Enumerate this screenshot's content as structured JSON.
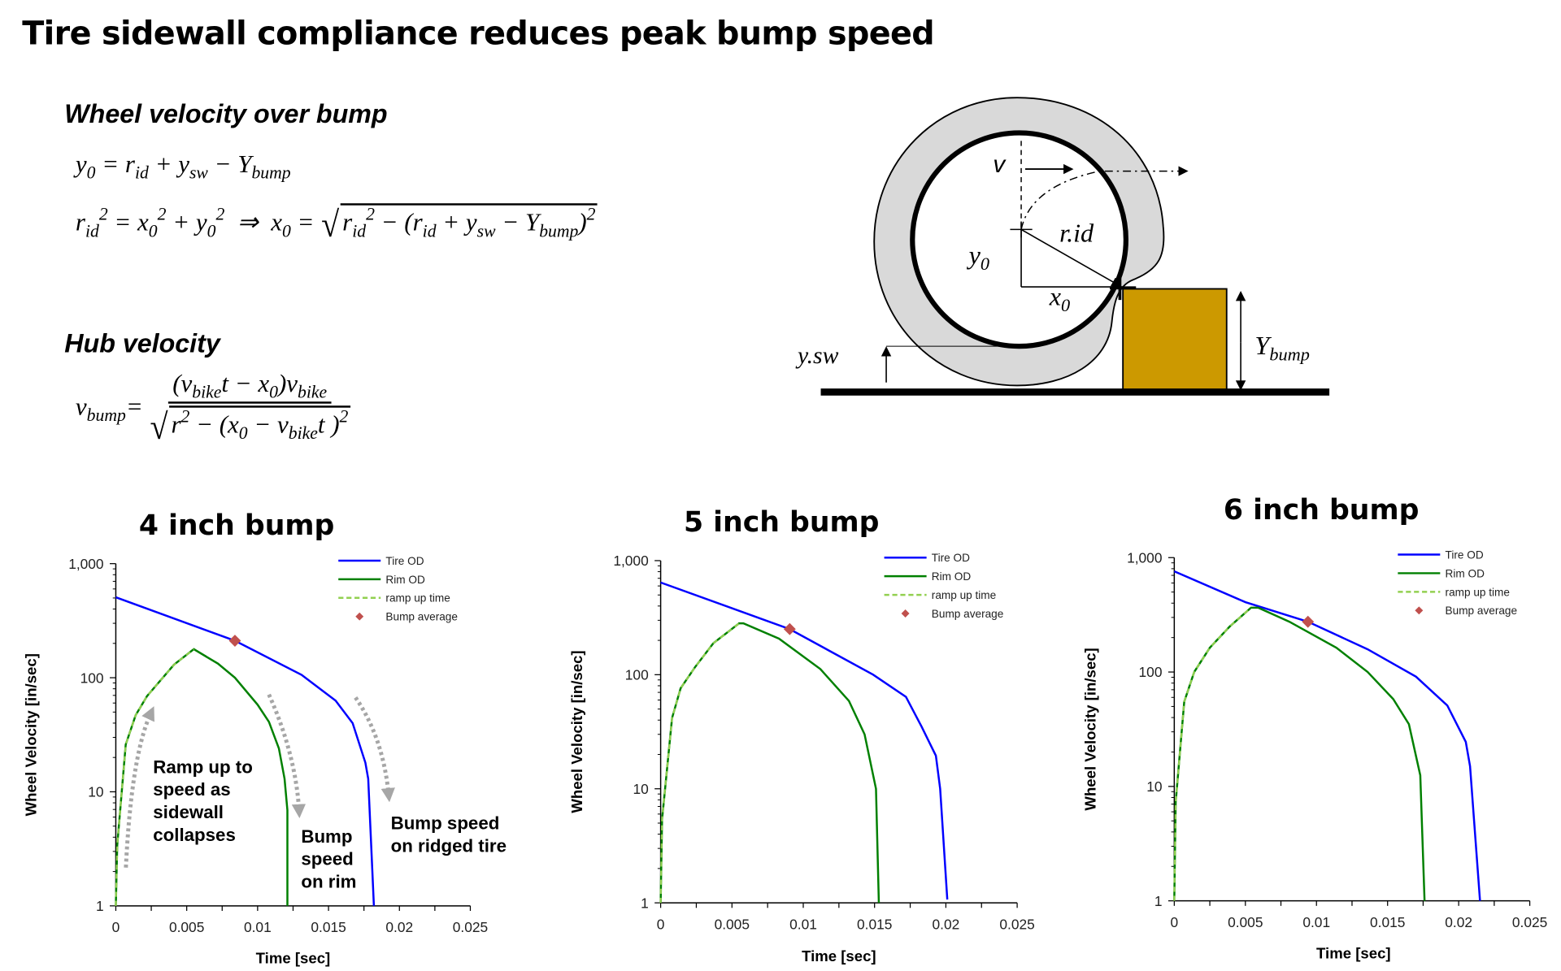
{
  "title": "Tire sidewall compliance reduces peak bump speed",
  "equations_panel": {
    "section1": "Wheel velocity over bump",
    "eq_y0": "y_{0} = r_{id} + y_{sw} − Y_{bump}",
    "eq_x0_lhs": "r_{id}^{2} = x_{0}^{2} + y_{0}^{2}  ⇒  x_{0} = ",
    "eq_x0_radicand": "r_{id}^{2} − (r_{id} + y_{sw} − Y_{bump})^{2}",
    "section2": "Hub velocity",
    "eq_vbump_lhs": "v_{bump}=",
    "eq_vbump_num": "(v_{bike}t − x_{0})v_{bike}",
    "eq_vbump_den": "r^{2} − (x_{0} − v_{bike}t )^{2}"
  },
  "diagram": {
    "v_label": "v",
    "rid_label": "r.id",
    "y0_label": {
      "main": "y",
      "sub": "0"
    },
    "x0_label": {
      "main": "x",
      "sub": "0"
    },
    "ysw_label": "y.sw",
    "ybump_label": {
      "main": "Y",
      "sub": "bump"
    },
    "colors": {
      "tire": "#d9d9d9",
      "bump": "#cc9900",
      "ground": "#000000"
    }
  },
  "chart_data": [
    {
      "type": "line",
      "title": "4 inch bump",
      "xlabel": "Time [sec]",
      "ylabel": "Wheel Velocity [in/sec]",
      "xlim": [
        0,
        0.025
      ],
      "ylim": [
        1,
        1000
      ],
      "yscale": "log",
      "xticks": [
        "0",
        "0.005",
        "0.01",
        "0.015",
        "0.02",
        "0.025"
      ],
      "yticks": [
        "1",
        "10",
        "100",
        "1,000"
      ],
      "grid": false,
      "legend_position": "top-right",
      "series": [
        {
          "name": "Tire OD",
          "color": "#0000ff",
          "style": "solid",
          "x": [
            0,
            0.0084,
            0.0131,
            0.0155,
            0.0167,
            0.0176,
            0.0178,
            0.0182
          ],
          "y": [
            507,
            211,
            106,
            63,
            40,
            18,
            13,
            1
          ]
        },
        {
          "name": "Rim OD",
          "color": "#008000",
          "style": "solid",
          "x": [
            0,
            0.0001,
            0.0007,
            0.0014,
            0.0022,
            0.0041,
            0.0055,
            0.0072,
            0.0084,
            0.01,
            0.0108,
            0.0115,
            0.0119,
            0.0121,
            0.0121
          ],
          "y": [
            1,
            3.4,
            26,
            47,
            69,
            130,
            178,
            133,
            100,
            58,
            41,
            24,
            13,
            6.9,
            1
          ]
        },
        {
          "name": "ramp up time",
          "color": "#92d050",
          "style": "dashed",
          "x": [
            0,
            0.0001,
            0.0007,
            0.0014,
            0.0022,
            0.0041,
            0.0055
          ],
          "y": [
            1,
            3.4,
            26,
            47,
            69,
            130,
            178
          ]
        },
        {
          "name": "Bump average",
          "color": "#c0504d",
          "style": "marker",
          "x": [
            0.0084
          ],
          "y": [
            211
          ]
        }
      ],
      "annotations": [
        {
          "lines": [
            "Ramp up to",
            "speed as",
            "sidewall",
            "collapses"
          ]
        },
        {
          "lines": [
            "Bump",
            "speed",
            "on rim"
          ]
        },
        {
          "lines": [
            "Bump speed",
            "on ridged tire"
          ]
        }
      ]
    },
    {
      "type": "line",
      "title": "5 inch bump",
      "xlabel": "Time [sec]",
      "ylabel": "Wheel Velocity [in/sec]",
      "xlim": [
        0,
        0.025
      ],
      "ylim": [
        1,
        1000
      ],
      "yscale": "log",
      "xticks": [
        "0",
        "0.005",
        "0.01",
        "0.015",
        "0.02",
        "0.025"
      ],
      "yticks": [
        "1",
        "10",
        "100",
        "1,000"
      ],
      "grid": false,
      "legend_position": "top-right",
      "series": [
        {
          "name": "Tire OD",
          "color": "#0000ff",
          "style": "solid",
          "x": [
            0,
            0.00905,
            0.0149,
            0.0172,
            0.0183,
            0.0193,
            0.0196,
            0.0201
          ],
          "y": [
            643,
            251,
            100,
            64,
            35,
            19.5,
            10,
            1.07
          ]
        },
        {
          "name": "Rim OD",
          "color": "#008000",
          "style": "solid",
          "x": [
            0,
            0.0001,
            0.0008,
            0.0014,
            0.0024,
            0.0037,
            0.0055,
            0.0058,
            0.0083,
            0.0112,
            0.0132,
            0.0143,
            0.0151,
            0.0153
          ],
          "y": [
            1,
            5.4,
            41.7,
            76,
            116,
            189,
            282,
            282,
            207,
            112,
            59,
            30,
            10,
            1
          ]
        },
        {
          "name": "ramp up time",
          "color": "#92d050",
          "style": "dashed",
          "x": [
            0,
            0.0001,
            0.0008,
            0.0014,
            0.0024,
            0.0037,
            0.0055
          ],
          "y": [
            1,
            5.4,
            41.7,
            76,
            116,
            189,
            282
          ]
        },
        {
          "name": "Bump average",
          "color": "#c0504d",
          "style": "marker",
          "x": [
            0.00905
          ],
          "y": [
            251
          ]
        }
      ]
    },
    {
      "type": "line",
      "title": "6 inch bump",
      "xlabel": "Time [sec]",
      "ylabel": "Wheel Velocity [in/sec]",
      "xlim": [
        0,
        0.025
      ],
      "ylim": [
        1,
        1000
      ],
      "yscale": "log",
      "xticks": [
        "0",
        "0.005",
        "0.01",
        "0.015",
        "0.02",
        "0.025"
      ],
      "yticks": [
        "1",
        "10",
        "100",
        "1,000"
      ],
      "grid": false,
      "legend_position": "top-right",
      "series": [
        {
          "name": "Tire OD",
          "color": "#0000ff",
          "style": "solid",
          "x": [
            0,
            0.005,
            0.0094,
            0.0136,
            0.017,
            0.0192,
            0.0205,
            0.0208,
            0.0215
          ],
          "y": [
            759,
            408,
            275,
            158,
            91,
            51,
            24.5,
            15,
            1
          ]
        },
        {
          "name": "Rim OD",
          "color": "#008000",
          "style": "solid",
          "x": [
            0,
            0.0001,
            0.0007,
            0.0014,
            0.0025,
            0.0039,
            0.0054,
            0.0059,
            0.0081,
            0.0114,
            0.0136,
            0.0154,
            0.0165,
            0.0173,
            0.0176
          ],
          "y": [
            1,
            7.3,
            55,
            100,
            163,
            250,
            365,
            365,
            275,
            163,
            100,
            58,
            35,
            12.5,
            1
          ]
        },
        {
          "name": "ramp up time",
          "color": "#92d050",
          "style": "dashed",
          "x": [
            0,
            0.0001,
            0.0007,
            0.0014,
            0.0025,
            0.0039,
            0.0054
          ],
          "y": [
            1,
            7.3,
            55,
            100,
            163,
            250,
            365
          ]
        },
        {
          "name": "Bump average",
          "color": "#c0504d",
          "style": "marker",
          "x": [
            0.0094
          ],
          "y": [
            275
          ]
        }
      ]
    }
  ]
}
